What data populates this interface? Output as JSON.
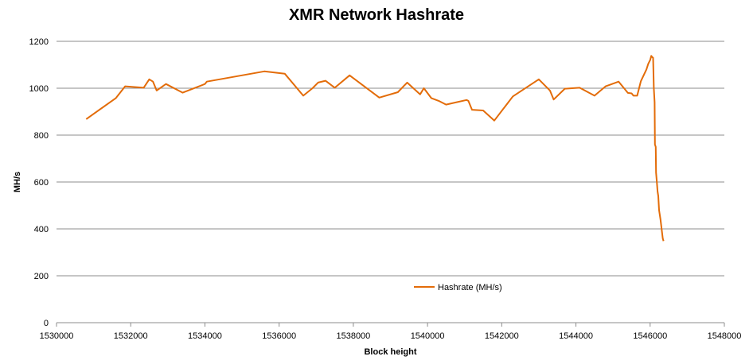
{
  "chart_data": {
    "type": "line",
    "title": "XMR Network Hashrate",
    "xlabel": "Block height",
    "ylabel": "MH/s",
    "xlim": [
      1530000,
      1548000
    ],
    "ylim": [
      0,
      1200
    ],
    "xticks": [
      1530000,
      1532000,
      1534000,
      1536000,
      1538000,
      1540000,
      1542000,
      1544000,
      1546000,
      1548000
    ],
    "yticks": [
      0,
      200,
      400,
      600,
      800,
      1000,
      1200
    ],
    "grid": "horizontal",
    "legend": "inside-bottom-center",
    "series": [
      {
        "name": "Hashrate (MH/s)",
        "color": "#e36c09",
        "points": [
          [
            1530800,
            868
          ],
          [
            1531600,
            958
          ],
          [
            1531850,
            1008
          ],
          [
            1532350,
            1002
          ],
          [
            1532500,
            1038
          ],
          [
            1532600,
            1028
          ],
          [
            1532700,
            990
          ],
          [
            1532950,
            1018
          ],
          [
            1533400,
            981
          ],
          [
            1534000,
            1018
          ],
          [
            1534050,
            1028
          ],
          [
            1535600,
            1072
          ],
          [
            1536150,
            1062
          ],
          [
            1536650,
            968
          ],
          [
            1536900,
            1000
          ],
          [
            1537050,
            1024
          ],
          [
            1537250,
            1032
          ],
          [
            1537500,
            1002
          ],
          [
            1537900,
            1055
          ],
          [
            1538700,
            960
          ],
          [
            1539200,
            983
          ],
          [
            1539450,
            1024
          ],
          [
            1539800,
            974
          ],
          [
            1539900,
            1000
          ],
          [
            1540100,
            958
          ],
          [
            1540300,
            946
          ],
          [
            1540500,
            930
          ],
          [
            1541050,
            950
          ],
          [
            1541100,
            946
          ],
          [
            1541200,
            908
          ],
          [
            1541500,
            905
          ],
          [
            1541800,
            862
          ],
          [
            1542300,
            965
          ],
          [
            1543000,
            1038
          ],
          [
            1543300,
            990
          ],
          [
            1543400,
            952
          ],
          [
            1543700,
            998
          ],
          [
            1544100,
            1002
          ],
          [
            1544500,
            968
          ],
          [
            1544800,
            1008
          ],
          [
            1545150,
            1028
          ],
          [
            1545400,
            980
          ],
          [
            1545500,
            978
          ],
          [
            1545550,
            968
          ],
          [
            1545650,
            968
          ],
          [
            1545750,
            1030
          ],
          [
            1545900,
            1080
          ],
          [
            1545950,
            1104
          ],
          [
            1546000,
            1120
          ],
          [
            1546030,
            1138
          ],
          [
            1546060,
            1132
          ],
          [
            1546080,
            1130
          ],
          [
            1546100,
            1000
          ],
          [
            1546120,
            940
          ],
          [
            1546130,
            760
          ],
          [
            1546150,
            750
          ],
          [
            1546160,
            640
          ],
          [
            1546180,
            600
          ],
          [
            1546200,
            560
          ],
          [
            1546220,
            540
          ],
          [
            1546240,
            480
          ],
          [
            1546280,
            440
          ],
          [
            1546310,
            400
          ],
          [
            1546340,
            360
          ],
          [
            1546360,
            348
          ]
        ]
      }
    ]
  }
}
